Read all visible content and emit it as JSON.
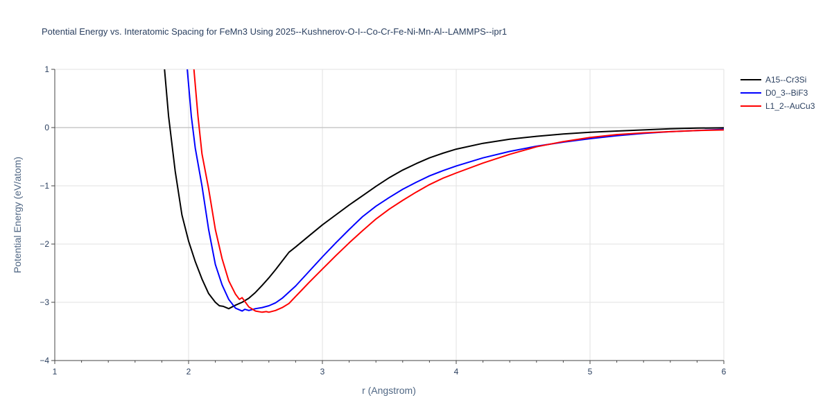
{
  "chart_data": {
    "type": "line",
    "title": "Potential Energy vs. Interatomic Spacing for FeMn3 Using 2025--Kushnerov-O-I--Co-Cr-Fe-Ni-Mn-Al--LAMMPS--ipr1",
    "xlabel": "r (Angstrom)",
    "ylabel": "Potential Energy (eV/atom)",
    "xlim": [
      1,
      6
    ],
    "ylim": [
      -4,
      1
    ],
    "xticks": [
      "1",
      "2",
      "3",
      "4",
      "5",
      "6"
    ],
    "yticks": [
      "1",
      "0",
      "−1",
      "−2",
      "−3",
      "−4"
    ],
    "grid": true,
    "legend_position": "top-right",
    "series": [
      {
        "name": "A15--Cr3Si",
        "color": "#000000",
        "x": [
          1.82,
          1.85,
          1.9,
          1.95,
          2.0,
          2.05,
          2.1,
          2.15,
          2.2,
          2.23,
          2.26,
          2.3,
          2.35,
          2.4,
          2.45,
          2.5,
          2.55,
          2.6,
          2.65,
          2.7,
          2.75,
          2.8,
          2.9,
          3.0,
          3.1,
          3.2,
          3.3,
          3.4,
          3.5,
          3.6,
          3.7,
          3.8,
          3.9,
          4.0,
          4.2,
          4.4,
          4.6,
          4.8,
          5.0,
          5.2,
          5.4,
          5.6,
          5.8,
          6.0
        ],
        "y": [
          1.0,
          0.2,
          -0.75,
          -1.5,
          -1.95,
          -2.3,
          -2.6,
          -2.85,
          -3.0,
          -3.06,
          -3.07,
          -3.11,
          -3.05,
          -3.0,
          -2.93,
          -2.83,
          -2.71,
          -2.58,
          -2.44,
          -2.29,
          -2.14,
          -2.05,
          -1.86,
          -1.67,
          -1.5,
          -1.33,
          -1.17,
          -1.01,
          -0.86,
          -0.73,
          -0.62,
          -0.52,
          -0.44,
          -0.37,
          -0.27,
          -0.2,
          -0.15,
          -0.11,
          -0.08,
          -0.06,
          -0.04,
          -0.02,
          -0.01,
          -0.005
        ]
      },
      {
        "name": "D0_3--BiF3",
        "color": "#0000ff",
        "x": [
          1.99,
          2.02,
          2.05,
          2.1,
          2.15,
          2.2,
          2.25,
          2.3,
          2.35,
          2.4,
          2.42,
          2.45,
          2.5,
          2.55,
          2.6,
          2.65,
          2.7,
          2.8,
          2.9,
          3.0,
          3.1,
          3.2,
          3.3,
          3.4,
          3.5,
          3.6,
          3.7,
          3.8,
          3.9,
          4.0,
          4.2,
          4.4,
          4.6,
          4.8,
          5.0,
          5.2,
          5.4,
          5.6,
          5.8,
          6.0
        ],
        "y": [
          1.0,
          0.2,
          -0.35,
          -1.0,
          -1.75,
          -2.35,
          -2.7,
          -2.95,
          -3.1,
          -3.15,
          -3.12,
          -3.14,
          -3.11,
          -3.09,
          -3.06,
          -3.01,
          -2.93,
          -2.72,
          -2.47,
          -2.22,
          -1.98,
          -1.75,
          -1.53,
          -1.35,
          -1.2,
          -1.06,
          -0.94,
          -0.83,
          -0.74,
          -0.66,
          -0.52,
          -0.41,
          -0.32,
          -0.25,
          -0.19,
          -0.14,
          -0.1,
          -0.07,
          -0.05,
          -0.03
        ]
      },
      {
        "name": "L1_2--AuCu3",
        "color": "#ff0000",
        "x": [
          2.04,
          2.07,
          2.1,
          2.15,
          2.2,
          2.25,
          2.3,
          2.35,
          2.38,
          2.4,
          2.45,
          2.5,
          2.55,
          2.58,
          2.6,
          2.65,
          2.7,
          2.75,
          2.8,
          2.85,
          2.9,
          3.0,
          3.1,
          3.2,
          3.3,
          3.4,
          3.5,
          3.6,
          3.7,
          3.8,
          3.9,
          4.0,
          4.2,
          4.4,
          4.6,
          4.8,
          5.0,
          5.2,
          5.4,
          5.6,
          5.8,
          6.0
        ],
        "y": [
          1.0,
          0.2,
          -0.45,
          -1.05,
          -1.75,
          -2.25,
          -2.63,
          -2.86,
          -2.95,
          -2.92,
          -3.08,
          -3.15,
          -3.17,
          -3.16,
          -3.17,
          -3.14,
          -3.09,
          -3.02,
          -2.9,
          -2.78,
          -2.66,
          -2.43,
          -2.2,
          -1.98,
          -1.77,
          -1.57,
          -1.4,
          -1.25,
          -1.11,
          -0.98,
          -0.87,
          -0.78,
          -0.61,
          -0.46,
          -0.33,
          -0.24,
          -0.17,
          -0.12,
          -0.09,
          -0.07,
          -0.05,
          -0.04
        ]
      }
    ]
  }
}
